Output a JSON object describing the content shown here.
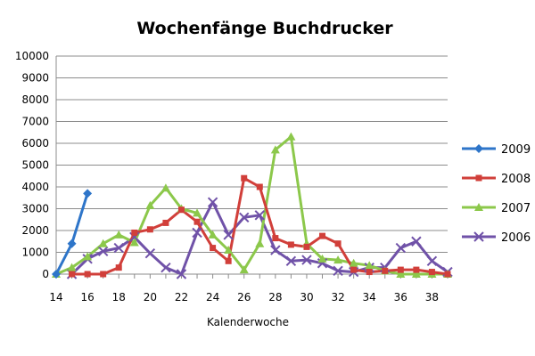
{
  "chart_data": {
    "type": "line",
    "title": "Wochenfänge Buchdrucker",
    "xlabel": "Kalenderwoche",
    "ylabel": "",
    "xlim": [
      14,
      39
    ],
    "ylim": [
      0,
      10000
    ],
    "yticks": [
      0,
      1000,
      2000,
      3000,
      4000,
      5000,
      6000,
      7000,
      8000,
      9000,
      10000
    ],
    "xticks": [
      14,
      16,
      18,
      20,
      22,
      24,
      26,
      28,
      30,
      32,
      34,
      36,
      38
    ],
    "grid": "horizontal",
    "legend_position": "right",
    "series": [
      {
        "name": "2009",
        "color": "#2e75c9",
        "marker": "diamond",
        "x": [
          14,
          15,
          16
        ],
        "values": [
          0,
          1400,
          3700
        ]
      },
      {
        "name": "2008",
        "color": "#d13f3a",
        "marker": "square",
        "x": [
          15,
          16,
          17,
          18,
          19,
          20,
          21,
          22,
          23,
          24,
          25,
          26,
          27,
          28,
          29,
          30,
          31,
          32,
          33,
          34,
          35,
          36,
          37,
          38,
          39
        ],
        "values": [
          0,
          0,
          0,
          300,
          1900,
          2050,
          2350,
          2950,
          2400,
          1200,
          600,
          4400,
          4000,
          1650,
          1350,
          1250,
          1750,
          1400,
          200,
          100,
          150,
          200,
          200,
          100,
          0
        ]
      },
      {
        "name": "2007",
        "color": "#8cc84b",
        "marker": "triangle",
        "x": [
          14,
          15,
          16,
          17,
          18,
          19,
          20,
          21,
          22,
          23,
          24,
          25,
          26,
          27,
          28,
          29,
          30,
          31,
          32,
          33,
          34,
          35,
          36,
          37,
          38,
          39
        ],
        "values": [
          0,
          300,
          800,
          1400,
          1800,
          1450,
          3150,
          3950,
          3000,
          2800,
          1800,
          1100,
          200,
          1400,
          5700,
          6300,
          1400,
          700,
          650,
          500,
          400,
          150,
          0,
          0,
          0,
          0
        ]
      },
      {
        "name": "2006",
        "color": "#7052a8",
        "marker": "x",
        "x": [
          15,
          16,
          17,
          18,
          19,
          20,
          21,
          22,
          23,
          24,
          25,
          26,
          27,
          28,
          29,
          30,
          31,
          32,
          33,
          34,
          35,
          36,
          37,
          38,
          39
        ],
        "values": [
          0,
          700,
          1050,
          1200,
          1700,
          950,
          300,
          0,
          1900,
          3300,
          1800,
          2600,
          2700,
          1100,
          600,
          650,
          500,
          150,
          100,
          300,
          300,
          1200,
          1500,
          600,
          100
        ]
      }
    ]
  }
}
